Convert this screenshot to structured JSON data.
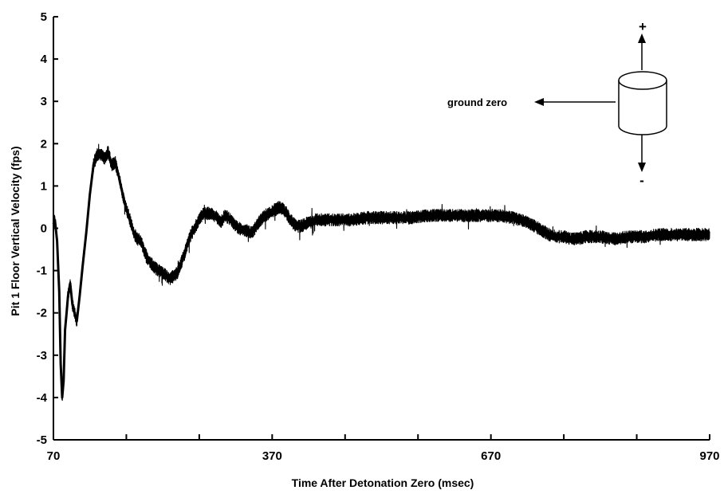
{
  "chart_data": {
    "type": "line",
    "xlabel": "Time After Detonation Zero (msec)",
    "ylabel": "Pit 1 Floor Vertical Velocity (fps)",
    "xlim": [
      70,
      970
    ],
    "ylim": [
      -5,
      5
    ],
    "x_tick_labels": [
      "70",
      "370",
      "670",
      "970"
    ],
    "x_tick_values": [
      70,
      370,
      670,
      970
    ],
    "x_minor_ticks": [
      170,
      270,
      470,
      570,
      770,
      870
    ],
    "y_tick_labels": [
      "-5",
      "-4",
      "-3",
      "-2",
      "-1",
      "0",
      "1",
      "2",
      "3",
      "4",
      "5"
    ],
    "y_tick_values": [
      -5,
      -4,
      -3,
      -2,
      -1,
      0,
      1,
      2,
      3,
      4,
      5
    ],
    "grid": false,
    "series": [
      {
        "color": "#000000",
        "noise_envelope_fps": 0.15,
        "x": [
          70,
          72,
          75,
          78,
          80,
          82,
          84,
          86,
          88,
          90,
          93,
          96,
          99,
          102,
          106,
          110,
          115,
          120,
          125,
          130,
          135,
          140,
          145,
          150,
          155,
          160,
          165,
          170,
          175,
          180,
          185,
          190,
          195,
          200,
          210,
          220,
          230,
          240,
          250,
          255,
          260,
          265,
          270,
          275,
          280,
          285,
          290,
          295,
          300,
          305,
          310,
          315,
          320,
          325,
          330,
          335,
          340,
          345,
          350,
          355,
          360,
          365,
          370,
          375,
          380,
          385,
          390,
          395,
          400,
          405,
          410,
          415,
          420,
          425,
          430,
          440,
          450,
          460,
          480,
          500,
          520,
          540,
          560,
          580,
          600,
          620,
          640,
          660,
          680,
          700,
          720,
          730,
          740,
          750,
          760,
          770,
          780,
          790,
          800,
          820,
          840,
          860,
          880,
          900,
          920,
          940,
          960,
          970
        ],
        "y": [
          0.1,
          0.2,
          -0.3,
          -1.5,
          -3.2,
          -4.0,
          -3.6,
          -2.4,
          -2.0,
          -1.6,
          -1.3,
          -1.8,
          -2.0,
          -2.2,
          -1.6,
          -0.9,
          -0.1,
          0.8,
          1.5,
          1.75,
          1.75,
          1.65,
          1.8,
          1.5,
          1.55,
          1.2,
          0.8,
          0.45,
          0.2,
          -0.1,
          -0.25,
          -0.3,
          -0.55,
          -0.75,
          -0.95,
          -1.05,
          -1.2,
          -1.05,
          -0.6,
          -0.3,
          -0.1,
          0.05,
          0.2,
          0.35,
          0.35,
          0.35,
          0.3,
          0.25,
          0.15,
          0.3,
          0.25,
          0.15,
          0.05,
          0.0,
          -0.05,
          -0.05,
          -0.1,
          -0.05,
          0.1,
          0.2,
          0.3,
          0.35,
          0.4,
          0.45,
          0.5,
          0.45,
          0.35,
          0.2,
          0.1,
          0.05,
          0.05,
          0.1,
          0.15,
          0.15,
          0.2,
          0.2,
          0.2,
          0.2,
          0.2,
          0.25,
          0.25,
          0.25,
          0.25,
          0.3,
          0.3,
          0.3,
          0.3,
          0.3,
          0.3,
          0.25,
          0.15,
          0.05,
          -0.05,
          -0.15,
          -0.2,
          -0.2,
          -0.25,
          -0.25,
          -0.2,
          -0.2,
          -0.25,
          -0.2,
          -0.2,
          -0.15,
          -0.15,
          -0.15,
          -0.15,
          -0.15
        ]
      }
    ],
    "annotation": {
      "text": "ground zero",
      "plus": "+",
      "minus": "-"
    }
  }
}
